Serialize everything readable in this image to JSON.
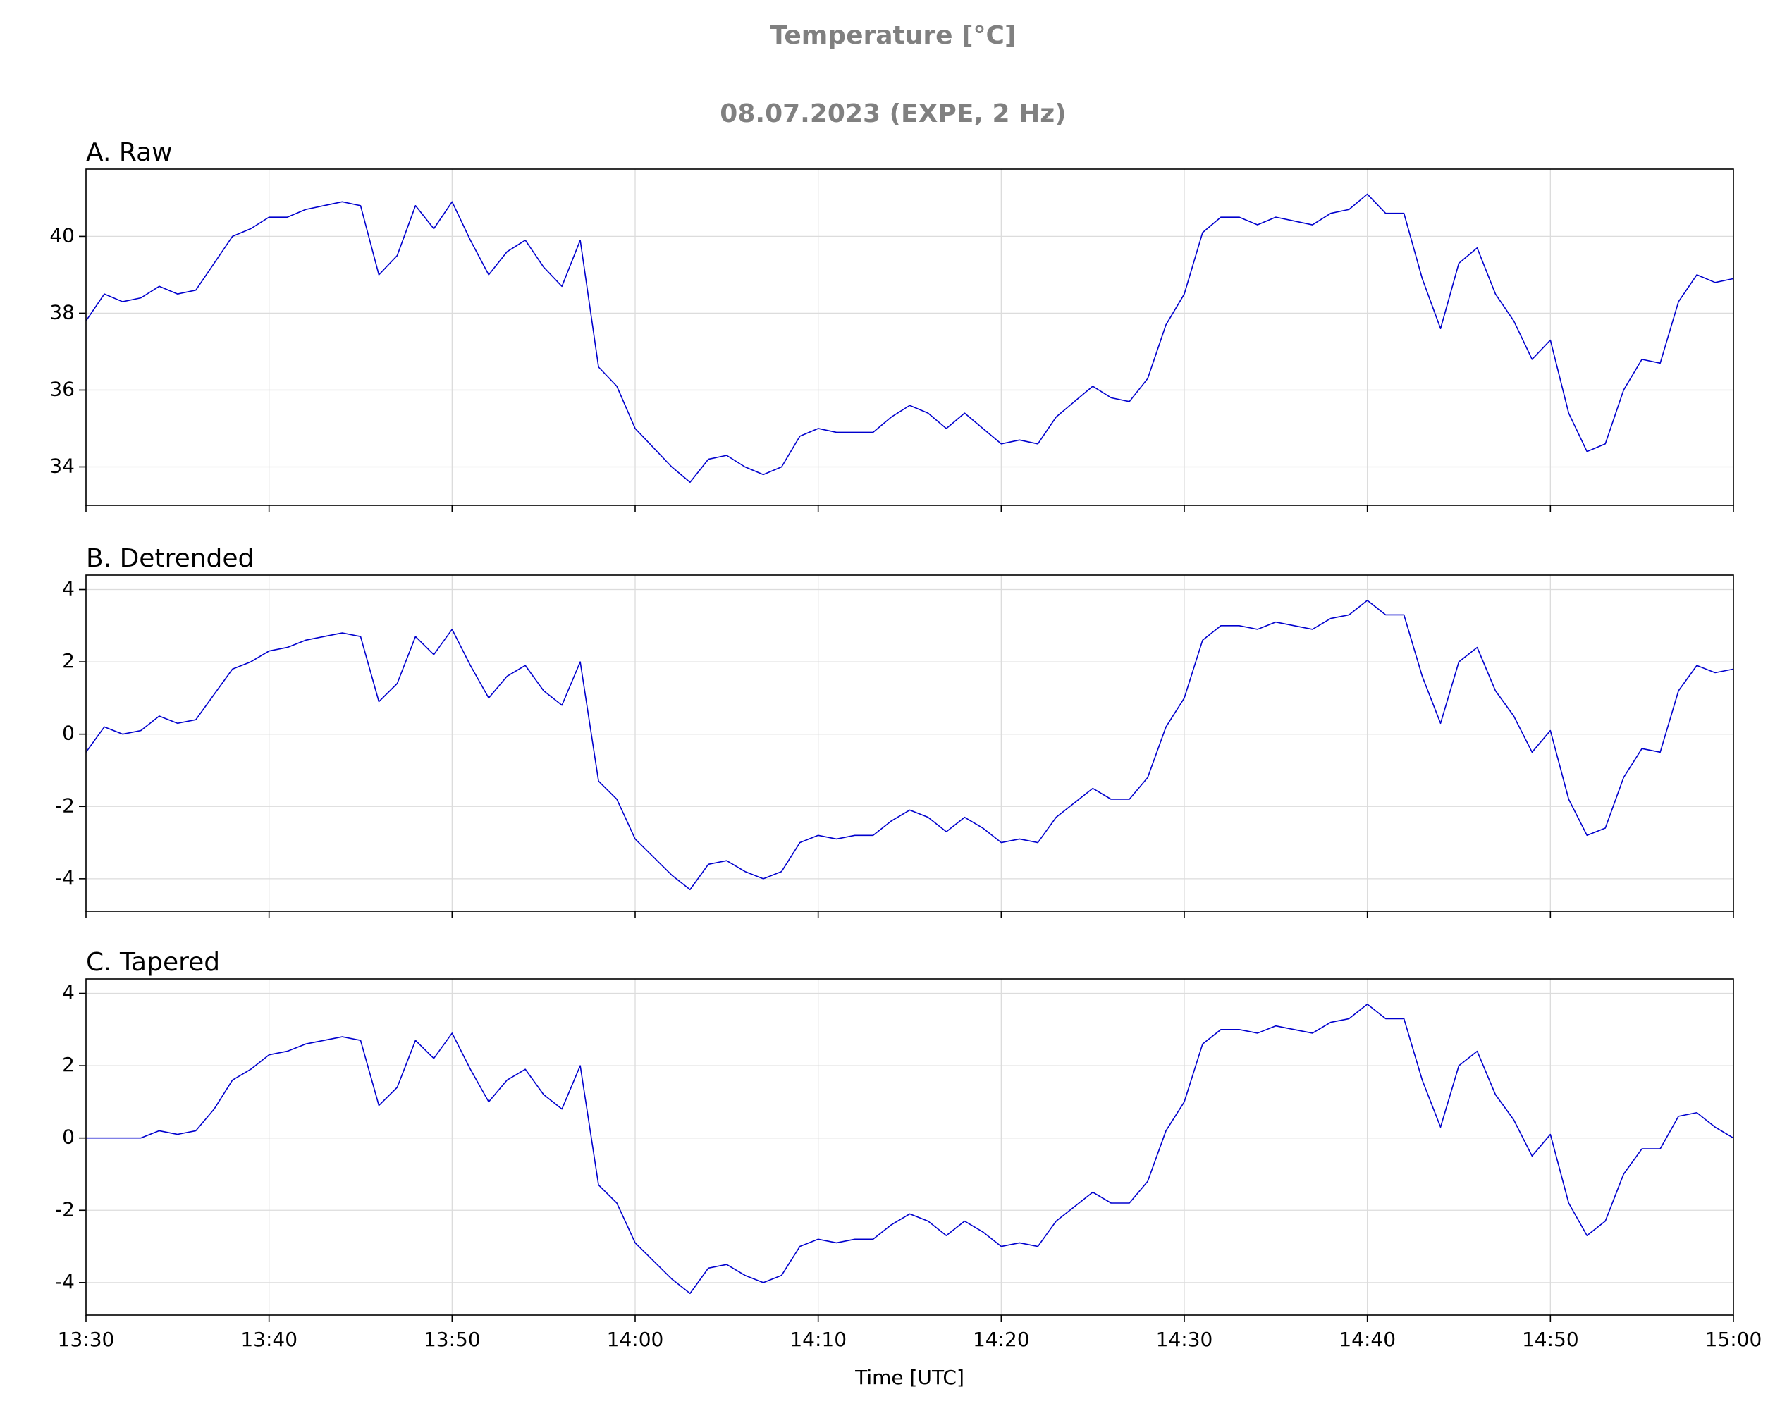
{
  "figure": {
    "title": "Temperature [°C]",
    "subtitle": "08.07.2023 (EXPE, 2 Hz)"
  },
  "chart_data": [
    {
      "type": "line",
      "title": "A. Raw",
      "grid": true,
      "xticklabels": false,
      "x": [
        "13:30",
        "13:31",
        "13:32",
        "13:33",
        "13:34",
        "13:35",
        "13:36",
        "13:37",
        "13:38",
        "13:39",
        "13:40",
        "13:41",
        "13:42",
        "13:43",
        "13:44",
        "13:45",
        "13:46",
        "13:47",
        "13:48",
        "13:49",
        "13:50",
        "13:51",
        "13:52",
        "13:53",
        "13:54",
        "13:55",
        "13:56",
        "13:57",
        "13:58",
        "13:59",
        "14:00",
        "14:01",
        "14:02",
        "14:03",
        "14:04",
        "14:05",
        "14:06",
        "14:07",
        "14:08",
        "14:09",
        "14:10",
        "14:11",
        "14:12",
        "14:13",
        "14:14",
        "14:15",
        "14:16",
        "14:17",
        "14:18",
        "14:19",
        "14:20",
        "14:21",
        "14:22",
        "14:23",
        "14:24",
        "14:25",
        "14:26",
        "14:27",
        "14:28",
        "14:29",
        "14:30",
        "14:31",
        "14:32",
        "14:33",
        "14:34",
        "14:35",
        "14:36",
        "14:37",
        "14:38",
        "14:39",
        "14:40",
        "14:41",
        "14:42",
        "14:43",
        "14:44",
        "14:45",
        "14:46",
        "14:47",
        "14:48",
        "14:49",
        "14:50",
        "14:51",
        "14:52",
        "14:53",
        "14:54",
        "14:55",
        "14:56",
        "14:57",
        "14:58",
        "14:59",
        "15:00"
      ],
      "xlim": [
        "13:30",
        "15:00"
      ],
      "xticks": [
        "13:30",
        "13:40",
        "13:50",
        "14:00",
        "14:10",
        "14:20",
        "14:30",
        "14:40",
        "14:50",
        "15:00"
      ],
      "ylim": [
        33.0,
        41.75
      ],
      "yticks": [
        34,
        36,
        38,
        40
      ],
      "series": [
        {
          "color": "#0000cd",
          "values": [
            37.8,
            38.5,
            38.3,
            38.4,
            38.7,
            38.5,
            38.6,
            39.3,
            40.0,
            40.2,
            40.5,
            40.5,
            40.7,
            40.8,
            40.9,
            40.8,
            39.0,
            39.5,
            40.8,
            40.2,
            40.9,
            39.9,
            39.0,
            39.6,
            39.9,
            39.2,
            38.7,
            39.9,
            36.6,
            36.1,
            35.0,
            34.5,
            34.0,
            33.6,
            34.2,
            34.3,
            34.0,
            33.8,
            34.0,
            34.8,
            35.0,
            34.9,
            34.9,
            34.9,
            35.3,
            35.6,
            35.4,
            35.0,
            35.4,
            35.0,
            34.6,
            34.7,
            34.6,
            35.3,
            35.7,
            36.1,
            35.8,
            35.7,
            36.3,
            37.7,
            38.5,
            40.1,
            40.5,
            40.5,
            40.3,
            40.5,
            40.4,
            40.3,
            40.6,
            40.7,
            41.1,
            40.6,
            40.6,
            38.9,
            37.6,
            39.3,
            39.7,
            38.5,
            37.8,
            36.8,
            37.3,
            35.4,
            34.4,
            34.6,
            36.0,
            36.8,
            36.7,
            38.3,
            39.0,
            38.8,
            38.9
          ]
        }
      ]
    },
    {
      "type": "line",
      "title": "B. Detrended",
      "grid": true,
      "xticklabels": false,
      "x": [
        "13:30",
        "13:31",
        "13:32",
        "13:33",
        "13:34",
        "13:35",
        "13:36",
        "13:37",
        "13:38",
        "13:39",
        "13:40",
        "13:41",
        "13:42",
        "13:43",
        "13:44",
        "13:45",
        "13:46",
        "13:47",
        "13:48",
        "13:49",
        "13:50",
        "13:51",
        "13:52",
        "13:53",
        "13:54",
        "13:55",
        "13:56",
        "13:57",
        "13:58",
        "13:59",
        "14:00",
        "14:01",
        "14:02",
        "14:03",
        "14:04",
        "14:05",
        "14:06",
        "14:07",
        "14:08",
        "14:09",
        "14:10",
        "14:11",
        "14:12",
        "14:13",
        "14:14",
        "14:15",
        "14:16",
        "14:17",
        "14:18",
        "14:19",
        "14:20",
        "14:21",
        "14:22",
        "14:23",
        "14:24",
        "14:25",
        "14:26",
        "14:27",
        "14:28",
        "14:29",
        "14:30",
        "14:31",
        "14:32",
        "14:33",
        "14:34",
        "14:35",
        "14:36",
        "14:37",
        "14:38",
        "14:39",
        "14:40",
        "14:41",
        "14:42",
        "14:43",
        "14:44",
        "14:45",
        "14:46",
        "14:47",
        "14:48",
        "14:49",
        "14:50",
        "14:51",
        "14:52",
        "14:53",
        "14:54",
        "14:55",
        "14:56",
        "14:57",
        "14:58",
        "14:59",
        "15:00"
      ],
      "xlim": [
        "13:30",
        "15:00"
      ],
      "xticks": [
        "13:30",
        "13:40",
        "13:50",
        "14:00",
        "14:10",
        "14:20",
        "14:30",
        "14:40",
        "14:50",
        "15:00"
      ],
      "ylim": [
        -4.9,
        4.4
      ],
      "yticks": [
        -4,
        -2,
        0,
        2,
        4
      ],
      "series": [
        {
          "color": "#0000cd",
          "values": [
            -0.5,
            0.2,
            0.0,
            0.1,
            0.5,
            0.3,
            0.4,
            1.1,
            1.8,
            2.0,
            2.3,
            2.4,
            2.6,
            2.7,
            2.8,
            2.7,
            0.9,
            1.4,
            2.7,
            2.2,
            2.9,
            1.9,
            1.0,
            1.6,
            1.9,
            1.2,
            0.8,
            2.0,
            -1.3,
            -1.8,
            -2.9,
            -3.4,
            -3.9,
            -4.3,
            -3.6,
            -3.5,
            -3.8,
            -4.0,
            -3.8,
            -3.0,
            -2.8,
            -2.9,
            -2.8,
            -2.8,
            -2.4,
            -2.1,
            -2.3,
            -2.7,
            -2.3,
            -2.6,
            -3.0,
            -2.9,
            -3.0,
            -2.3,
            -1.9,
            -1.5,
            -1.8,
            -1.8,
            -1.2,
            0.2,
            1.0,
            2.6,
            3.0,
            3.0,
            2.9,
            3.1,
            3.0,
            2.9,
            3.2,
            3.3,
            3.7,
            3.3,
            3.3,
            1.6,
            0.3,
            2.0,
            2.4,
            1.2,
            0.5,
            -0.5,
            0.1,
            -1.8,
            -2.8,
            -2.6,
            -1.2,
            -0.4,
            -0.5,
            1.2,
            1.9,
            1.7,
            1.8
          ]
        }
      ]
    },
    {
      "type": "line",
      "title": "C. Tapered",
      "grid": true,
      "xticklabels": true,
      "xlabel": "Time [UTC]",
      "x": [
        "13:30",
        "13:31",
        "13:32",
        "13:33",
        "13:34",
        "13:35",
        "13:36",
        "13:37",
        "13:38",
        "13:39",
        "13:40",
        "13:41",
        "13:42",
        "13:43",
        "13:44",
        "13:45",
        "13:46",
        "13:47",
        "13:48",
        "13:49",
        "13:50",
        "13:51",
        "13:52",
        "13:53",
        "13:54",
        "13:55",
        "13:56",
        "13:57",
        "13:58",
        "13:59",
        "14:00",
        "14:01",
        "14:02",
        "14:03",
        "14:04",
        "14:05",
        "14:06",
        "14:07",
        "14:08",
        "14:09",
        "14:10",
        "14:11",
        "14:12",
        "14:13",
        "14:14",
        "14:15",
        "14:16",
        "14:17",
        "14:18",
        "14:19",
        "14:20",
        "14:21",
        "14:22",
        "14:23",
        "14:24",
        "14:25",
        "14:26",
        "14:27",
        "14:28",
        "14:29",
        "14:30",
        "14:31",
        "14:32",
        "14:33",
        "14:34",
        "14:35",
        "14:36",
        "14:37",
        "14:38",
        "14:39",
        "14:40",
        "14:41",
        "14:42",
        "14:43",
        "14:44",
        "14:45",
        "14:46",
        "14:47",
        "14:48",
        "14:49",
        "14:50",
        "14:51",
        "14:52",
        "14:53",
        "14:54",
        "14:55",
        "14:56",
        "14:57",
        "14:58",
        "14:59",
        "15:00"
      ],
      "xlim": [
        "13:30",
        "15:00"
      ],
      "xticks": [
        "13:30",
        "13:40",
        "13:50",
        "14:00",
        "14:10",
        "14:20",
        "14:30",
        "14:40",
        "14:50",
        "15:00"
      ],
      "ylim": [
        -4.9,
        4.4
      ],
      "yticks": [
        -4,
        -2,
        0,
        2,
        4
      ],
      "series": [
        {
          "color": "#0000cd",
          "values": [
            0.0,
            0.0,
            0.0,
            0.0,
            0.2,
            0.1,
            0.2,
            0.8,
            1.6,
            1.9,
            2.3,
            2.4,
            2.6,
            2.7,
            2.8,
            2.7,
            0.9,
            1.4,
            2.7,
            2.2,
            2.9,
            1.9,
            1.0,
            1.6,
            1.9,
            1.2,
            0.8,
            2.0,
            -1.3,
            -1.8,
            -2.9,
            -3.4,
            -3.9,
            -4.3,
            -3.6,
            -3.5,
            -3.8,
            -4.0,
            -3.8,
            -3.0,
            -2.8,
            -2.9,
            -2.8,
            -2.8,
            -2.4,
            -2.1,
            -2.3,
            -2.7,
            -2.3,
            -2.6,
            -3.0,
            -2.9,
            -3.0,
            -2.3,
            -1.9,
            -1.5,
            -1.8,
            -1.8,
            -1.2,
            0.2,
            1.0,
            2.6,
            3.0,
            3.0,
            2.9,
            3.1,
            3.0,
            2.9,
            3.2,
            3.3,
            3.7,
            3.3,
            3.3,
            1.6,
            0.3,
            2.0,
            2.4,
            1.2,
            0.5,
            -0.5,
            0.1,
            -1.8,
            -2.7,
            -2.3,
            -1.0,
            -0.3,
            -0.3,
            0.6,
            0.7,
            0.3,
            0.0
          ]
        }
      ]
    }
  ]
}
